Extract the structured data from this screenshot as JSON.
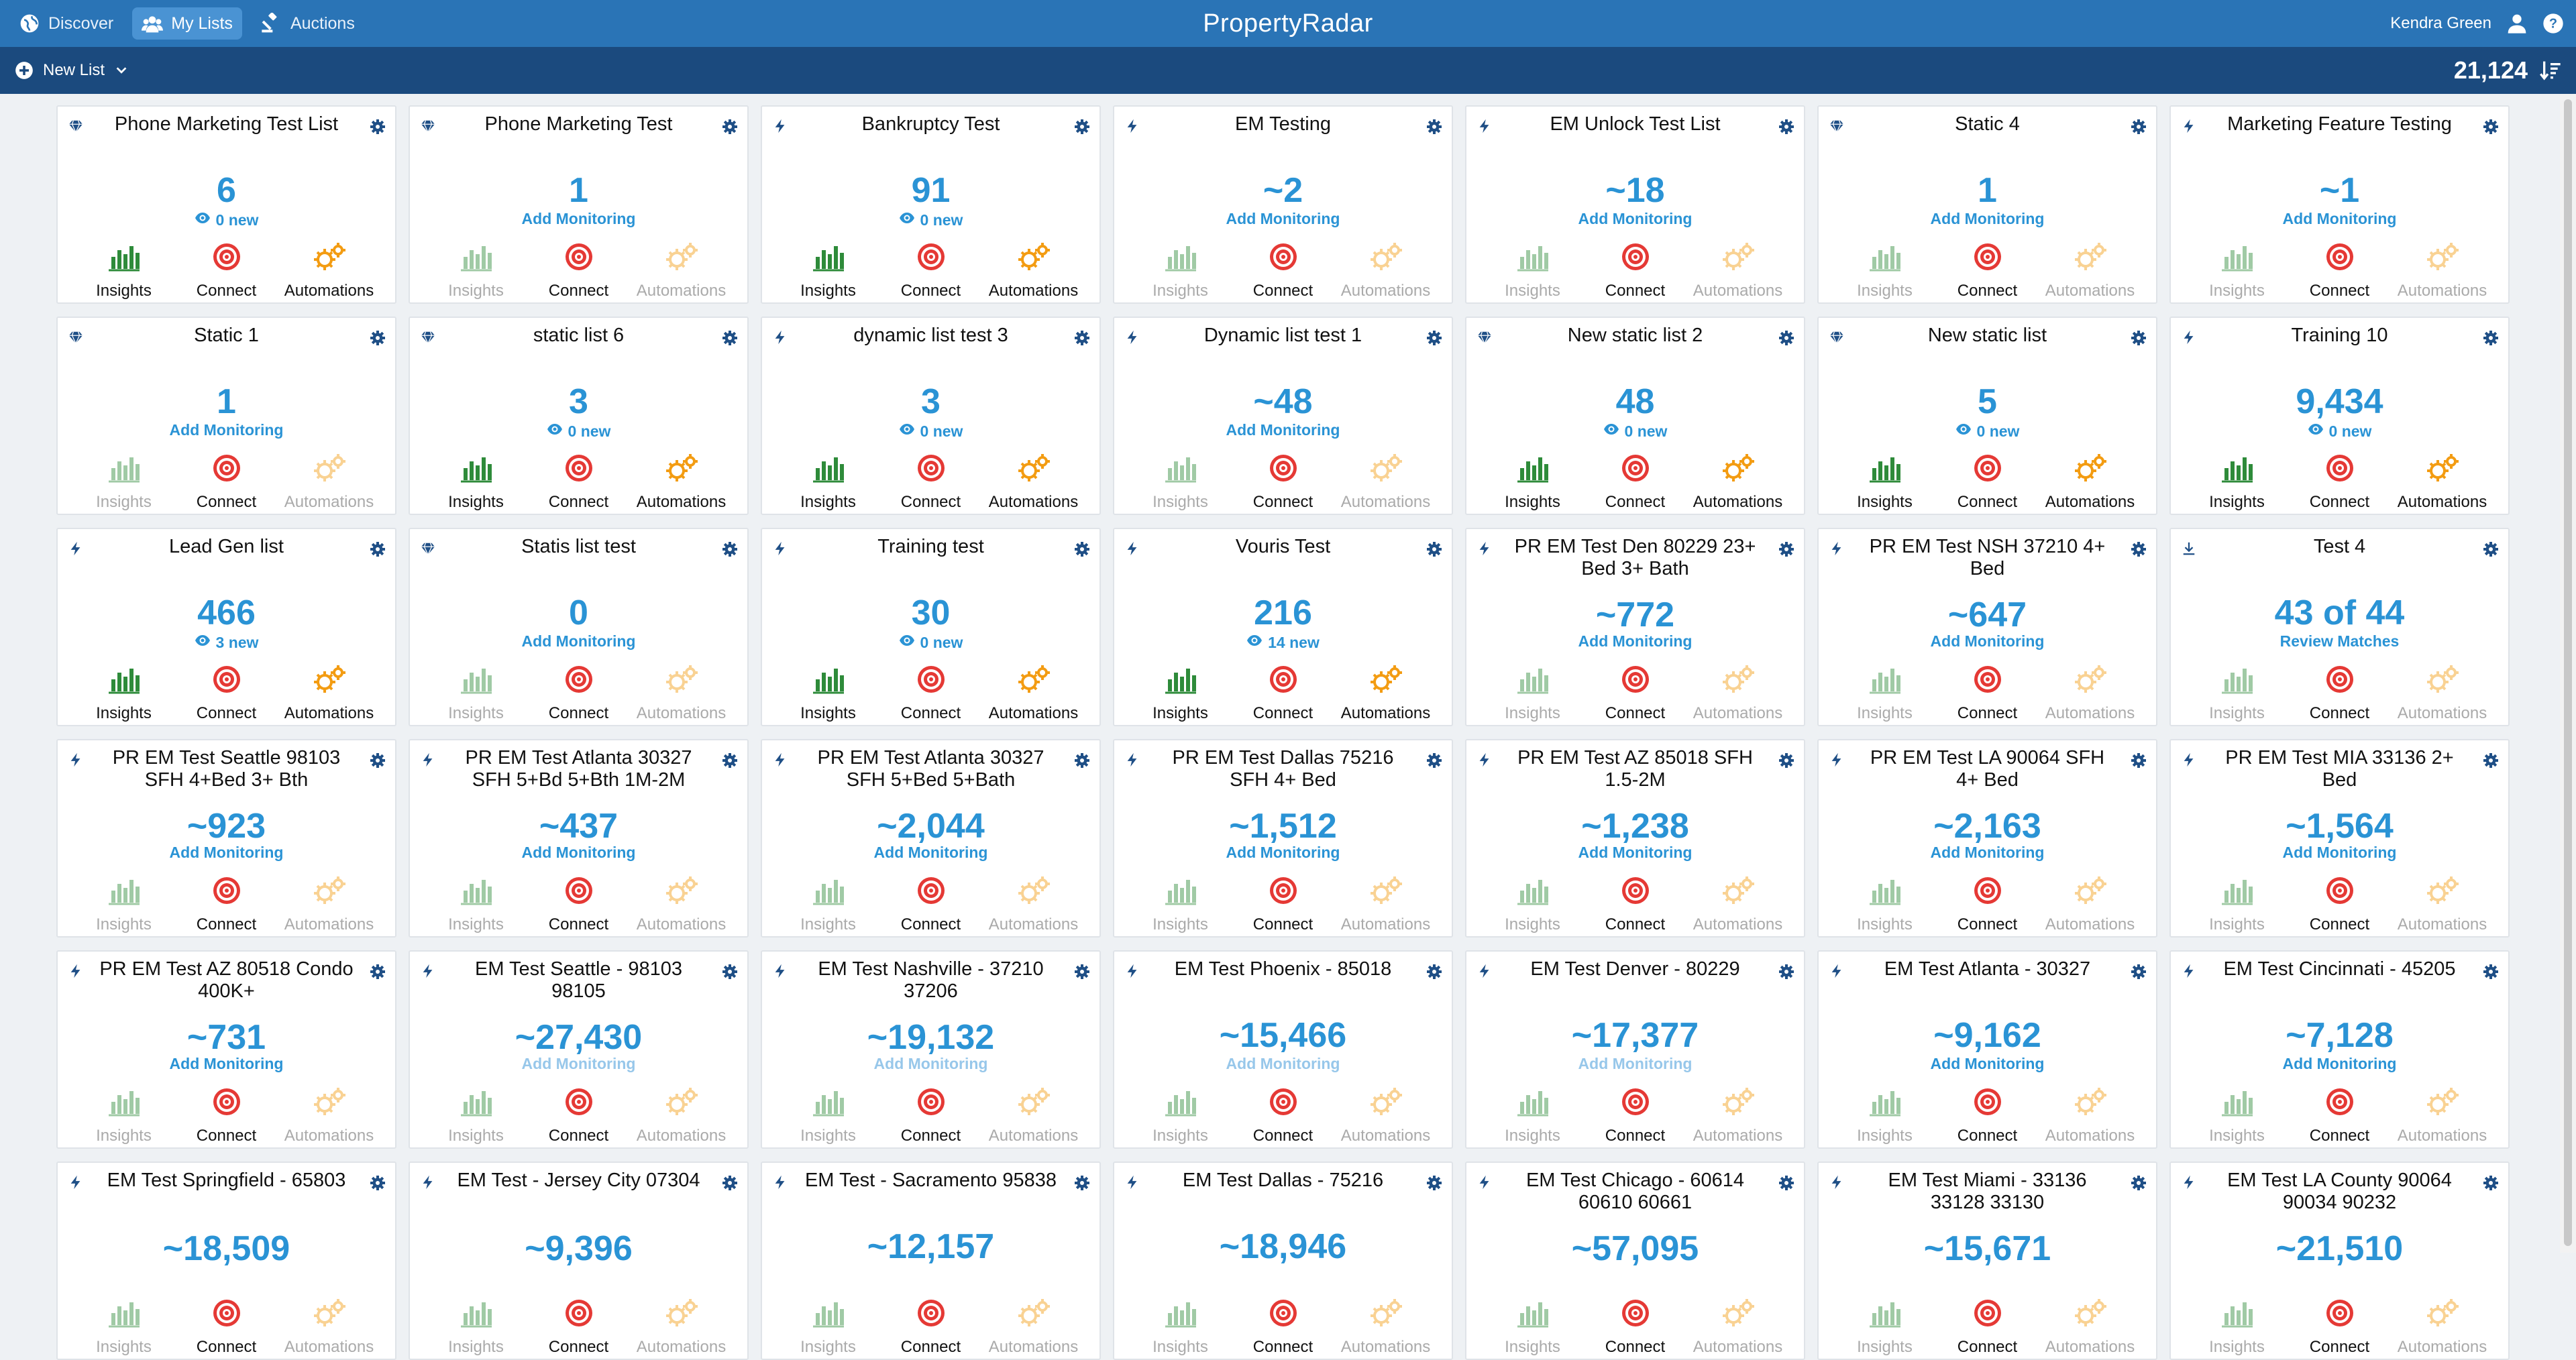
{
  "nav": {
    "discover": "Discover",
    "mylists": "My Lists",
    "auctions": "Auctions"
  },
  "brand": "PropertyRadar",
  "user": {
    "name": "Kendra Green"
  },
  "toolbar": {
    "new_list": "New List",
    "total": "21,124"
  },
  "labels": {
    "insights": "Insights",
    "connect": "Connect",
    "automations": "Automations"
  },
  "colors": {
    "accent": "#2a93d5",
    "insights": "#2e8b3a",
    "connect": "#e53935",
    "automations": "#f39c12",
    "topbar": "#2a74b6",
    "subbar": "#1b4a7e"
  },
  "cards": [
    {
      "type": "static",
      "title": "Phone Marketing Test List",
      "count": "6",
      "sub": "0 new",
      "subkind": "eye",
      "insights": true,
      "automations": true
    },
    {
      "type": "static",
      "title": "Phone Marketing Test",
      "count": "1",
      "sub": "Add Monitoring",
      "subkind": "link",
      "insights": false,
      "automations": false
    },
    {
      "type": "dynamic",
      "title": "Bankruptcy Test",
      "count": "91",
      "sub": "0 new",
      "subkind": "eye",
      "insights": true,
      "automations": true
    },
    {
      "type": "dynamic",
      "title": "EM Testing",
      "count": "~2",
      "sub": "Add Monitoring",
      "subkind": "link",
      "insights": false,
      "automations": false
    },
    {
      "type": "dynamic",
      "title": "EM Unlock Test List",
      "count": "~18",
      "sub": "Add Monitoring",
      "subkind": "link",
      "insights": false,
      "automations": false
    },
    {
      "type": "static",
      "title": "Static 4",
      "count": "1",
      "sub": "Add Monitoring",
      "subkind": "link",
      "insights": false,
      "automations": false
    },
    {
      "type": "dynamic",
      "title": "Marketing Feature Testing",
      "count": "~1",
      "sub": "Add Monitoring",
      "subkind": "link",
      "insights": false,
      "automations": false
    },
    {
      "type": "static",
      "title": "Static 1",
      "count": "1",
      "sub": "Add Monitoring",
      "subkind": "link",
      "insights": false,
      "automations": false
    },
    {
      "type": "static",
      "title": "static list 6",
      "count": "3",
      "sub": "0 new",
      "subkind": "eye",
      "insights": true,
      "automations": true
    },
    {
      "type": "dynamic",
      "title": "dynamic list test 3",
      "count": "3",
      "sub": "0 new",
      "subkind": "eye",
      "insights": true,
      "automations": true
    },
    {
      "type": "dynamic",
      "title": "Dynamic list test 1",
      "count": "~48",
      "sub": "Add Monitoring",
      "subkind": "link",
      "insights": false,
      "automations": false
    },
    {
      "type": "static",
      "title": "New static list 2",
      "count": "48",
      "sub": "0 new",
      "subkind": "eye",
      "insights": true,
      "automations": true
    },
    {
      "type": "static",
      "title": "New static list",
      "count": "5",
      "sub": "0 new",
      "subkind": "eye",
      "insights": true,
      "automations": true
    },
    {
      "type": "dynamic",
      "title": "Training 10",
      "count": "9,434",
      "sub": "0 new",
      "subkind": "eye",
      "insights": true,
      "automations": true
    },
    {
      "type": "dynamic",
      "title": "Lead Gen list",
      "count": "466",
      "sub": "3 new",
      "subkind": "eye",
      "insights": true,
      "automations": true
    },
    {
      "type": "static",
      "title": "Statis list test",
      "count": "0",
      "sub": "Add Monitoring",
      "subkind": "link",
      "insights": false,
      "automations": false
    },
    {
      "type": "dynamic",
      "title": "Training test",
      "count": "30",
      "sub": "0 new",
      "subkind": "eye",
      "insights": true,
      "automations": true
    },
    {
      "type": "dynamic",
      "title": "Vouris Test",
      "count": "216",
      "sub": "14 new",
      "subkind": "eye",
      "insights": true,
      "automations": true
    },
    {
      "type": "dynamic",
      "title": "PR EM Test Den 80229 23+ Bed 3+ Bath",
      "count": "~772",
      "sub": "Add Monitoring",
      "subkind": "link",
      "insights": false,
      "automations": false
    },
    {
      "type": "dynamic",
      "title": "PR EM Test NSH 37210 4+ Bed",
      "count": "~647",
      "sub": "Add Monitoring",
      "subkind": "link",
      "insights": false,
      "automations": false
    },
    {
      "type": "import",
      "title": "Test 4",
      "count": "43 of 44",
      "sub": "Review Matches",
      "subkind": "link",
      "insights": false,
      "automations": false
    },
    {
      "type": "dynamic",
      "title": "PR EM Test Seattle 98103 SFH 4+Bed 3+ Bth",
      "count": "~923",
      "sub": "Add Monitoring",
      "subkind": "link",
      "insights": false,
      "automations": false
    },
    {
      "type": "dynamic",
      "title": "PR EM Test Atlanta 30327 SFH 5+Bd 5+Bth 1M-2M",
      "count": "~437",
      "sub": "Add Monitoring",
      "subkind": "link",
      "insights": false,
      "automations": false
    },
    {
      "type": "dynamic",
      "title": "PR EM Test Atlanta 30327 SFH 5+Bed 5+Bath",
      "count": "~2,044",
      "sub": "Add Monitoring",
      "subkind": "link",
      "insights": false,
      "automations": false
    },
    {
      "type": "dynamic",
      "title": "PR EM Test Dallas 75216 SFH 4+ Bed",
      "count": "~1,512",
      "sub": "Add Monitoring",
      "subkind": "link",
      "insights": false,
      "automations": false
    },
    {
      "type": "dynamic",
      "title": "PR EM Test AZ 85018 SFH 1.5-2M",
      "count": "~1,238",
      "sub": "Add Monitoring",
      "subkind": "link",
      "insights": false,
      "automations": false
    },
    {
      "type": "dynamic",
      "title": "PR EM Test LA 90064 SFH 4+ Bed",
      "count": "~2,163",
      "sub": "Add Monitoring",
      "subkind": "link",
      "insights": false,
      "automations": false
    },
    {
      "type": "dynamic",
      "title": "PR EM Test MIA 33136 2+ Bed",
      "count": "~1,564",
      "sub": "Add Monitoring",
      "subkind": "link",
      "insights": false,
      "automations": false
    },
    {
      "type": "dynamic",
      "title": "PR EM Test AZ 80518 Condo 400K+",
      "count": "~731",
      "sub": "Add Monitoring",
      "subkind": "link",
      "insights": false,
      "automations": false
    },
    {
      "type": "dynamic",
      "title": "EM Test Seattle - 98103 98105",
      "count": "~27,430",
      "sub": "Add Monitoring",
      "subkind": "dim",
      "insights": false,
      "automations": false
    },
    {
      "type": "dynamic",
      "title": "EM Test Nashville - 37210 37206",
      "count": "~19,132",
      "sub": "Add Monitoring",
      "subkind": "dim",
      "insights": false,
      "automations": false
    },
    {
      "type": "dynamic",
      "title": "EM Test Phoenix - 85018",
      "count": "~15,466",
      "sub": "Add Monitoring",
      "subkind": "dim",
      "insights": false,
      "automations": false
    },
    {
      "type": "dynamic",
      "title": "EM Test Denver - 80229",
      "count": "~17,377",
      "sub": "Add Monitoring",
      "subkind": "dim",
      "insights": false,
      "automations": false
    },
    {
      "type": "dynamic",
      "title": "EM Test Atlanta - 30327",
      "count": "~9,162",
      "sub": "Add Monitoring",
      "subkind": "link",
      "insights": false,
      "automations": false
    },
    {
      "type": "dynamic",
      "title": "EM Test Cincinnati - 45205",
      "count": "~7,128",
      "sub": "Add Monitoring",
      "subkind": "link",
      "insights": false,
      "automations": false
    },
    {
      "type": "dynamic",
      "title": "EM Test Springfield - 65803",
      "count": "~18,509",
      "sub": "",
      "subkind": "link",
      "insights": false,
      "automations": false
    },
    {
      "type": "dynamic",
      "title": "EM Test - Jersey City 07304",
      "count": "~9,396",
      "sub": "",
      "subkind": "link",
      "insights": false,
      "automations": false
    },
    {
      "type": "dynamic",
      "title": "EM Test - Sacramento 95838",
      "count": "~12,157",
      "sub": "",
      "subkind": "link",
      "insights": false,
      "automations": false
    },
    {
      "type": "dynamic",
      "title": "EM Test Dallas - 75216",
      "count": "~18,946",
      "sub": "",
      "subkind": "link",
      "insights": false,
      "automations": false
    },
    {
      "type": "dynamic",
      "title": "EM Test Chicago - 60614 60610 60661",
      "count": "~57,095",
      "sub": "",
      "subkind": "link",
      "insights": false,
      "automations": false
    },
    {
      "type": "dynamic",
      "title": "EM Test Miami - 33136 33128 33130",
      "count": "~15,671",
      "sub": "",
      "subkind": "link",
      "insights": false,
      "automations": false
    },
    {
      "type": "dynamic",
      "title": "EM Test LA County 90064 90034 90232",
      "count": "~21,510",
      "sub": "",
      "subkind": "link",
      "insights": false,
      "automations": false
    }
  ]
}
